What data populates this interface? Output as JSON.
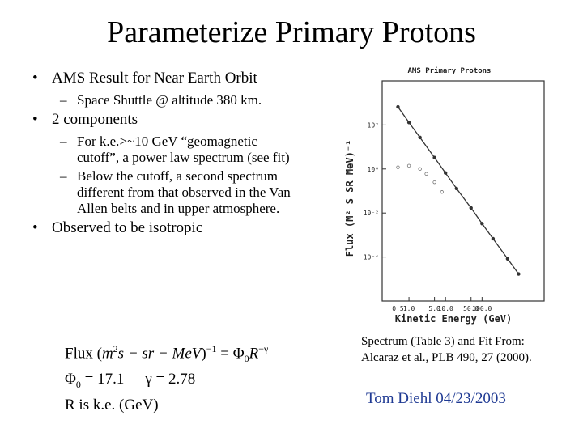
{
  "slide": {
    "title": "Parameterize Primary Protons",
    "bullets": [
      {
        "text": "AMS Result for Near Earth Orbit",
        "sub": [
          "Space Shuttle @ altitude 380 km."
        ]
      },
      {
        "text": "2 components",
        "sub": [
          "For k.e.>~10 GeV “geomagnetic cutoff”, a power law spectrum (see fit)",
          "Below the cutoff, a second spectrum different from that observed in the Van Allen belts and in upper atmosphere."
        ]
      },
      {
        "text": "Observed to be isotropic",
        "sub": []
      }
    ],
    "formula1": [
      "Flux (",
      "m",
      "2",
      "s − sr − MeV",
      ")",
      "−1",
      " = Φ",
      "0",
      "R",
      "−γ"
    ],
    "formula2": [
      "Φ",
      "0",
      " = 17.1",
      "γ = 2.78"
    ],
    "formula3": "R  is  k.e. (GeV)",
    "caption": [
      "Spectrum (Table 3) and Fit From:",
      "Alcaraz et al., PLB 490, 27 (2000)."
    ],
    "author": "Tom Diehl 04/23/2003"
  },
  "chart_data": {
    "type": "scatter",
    "title": "AMS Primary Protons",
    "x_label": "Kinetic Energy (GeV)",
    "y_label": "Flux (M² S SR MeV)⁻¹",
    "log_x": true,
    "log_y": true,
    "xlim": [
      0.185,
      5000
    ],
    "ylim": [
      1e-06,
      10000
    ],
    "xticks": [
      0.5,
      {
        "value": 1,
        "label": "1.0"
      },
      {
        "value": 5,
        "label": "5.0"
      },
      {
        "value": 10,
        "label": "10.0"
      },
      {
        "value": 50,
        "label": "50.0"
      },
      {
        "value": 100,
        "label": "100.0"
      }
    ],
    "yticks": [
      {
        "value": 100,
        "label": "10²"
      },
      {
        "value": 1,
        "label": "10⁰"
      },
      {
        "value": 0.01,
        "label": "10⁻²"
      },
      {
        "value": 0.0001,
        "label": "10⁻⁴"
      }
    ],
    "series": [
      {
        "color": "#333333",
        "x": [
          0.5,
          1,
          2,
          5,
          10,
          20,
          50,
          100,
          200,
          500,
          1000
        ],
        "values": [
          660,
          130,
          27,
          3.3,
          0.66,
          0.13,
          0.017,
          0.0033,
          0.00068,
          8.3e-05,
          1.7e-05
        ],
        "fit": true
      },
      {
        "color": "#777777",
        "x": [
          0.5,
          1,
          2,
          3,
          5,
          8
        ],
        "values": [
          1.2,
          1.4,
          1.0,
          0.6,
          0.25,
          0.09
        ],
        "fit": false
      }
    ]
  }
}
